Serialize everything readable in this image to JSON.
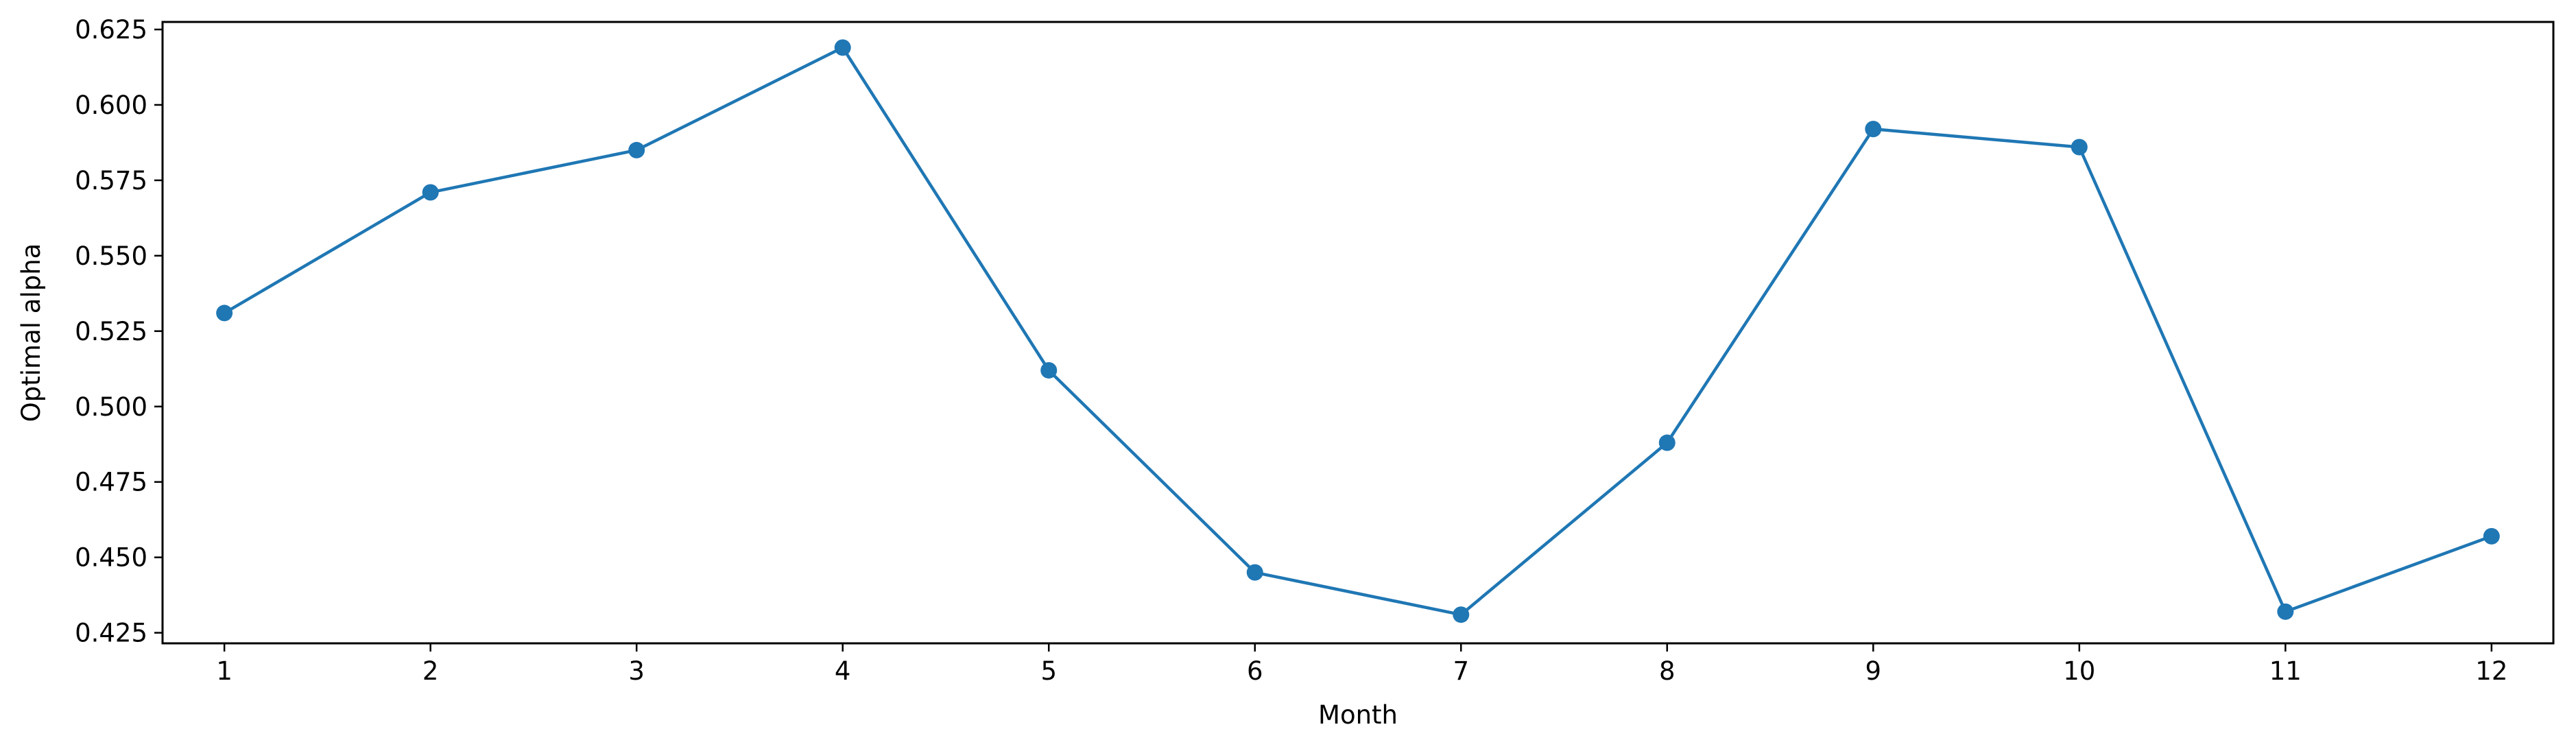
{
  "chart_data": {
    "type": "line",
    "title": "",
    "xlabel": "Month",
    "ylabel": "Optimal alpha",
    "x": [
      1,
      2,
      3,
      4,
      5,
      6,
      7,
      8,
      9,
      10,
      11,
      12
    ],
    "series": [
      {
        "values": [
          0.531,
          0.571,
          0.585,
          0.619,
          0.512,
          0.445,
          0.431,
          0.488,
          0.592,
          0.586,
          0.432,
          0.457
        ],
        "color": "#1f77b4",
        "marker": "circle"
      }
    ],
    "xticks": [
      "1",
      "2",
      "3",
      "4",
      "5",
      "6",
      "7",
      "8",
      "9",
      "10",
      "11",
      "12"
    ],
    "yticks": [
      "0.425",
      "0.450",
      "0.475",
      "0.500",
      "0.525",
      "0.550",
      "0.575",
      "0.600",
      "0.625"
    ],
    "xlim": [
      0.7,
      12.3
    ],
    "ylim": [
      0.4215,
      0.6275
    ],
    "grid": false,
    "legend": "none"
  }
}
